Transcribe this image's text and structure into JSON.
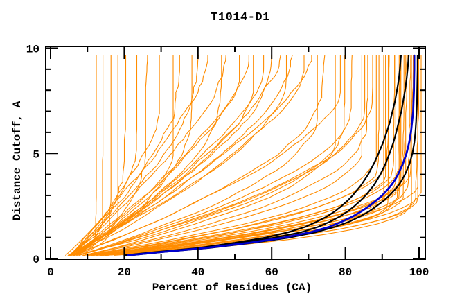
{
  "page": {
    "background": "#ffffff"
  },
  "chart_data": {
    "type": "line",
    "title": "T1014-D1",
    "xlabel": "Percent of Residues (CA)",
    "ylabel": "Distance Cutoff, A",
    "xlim": [
      -1.5,
      102
    ],
    "ylim": [
      -0.07,
      10.15
    ],
    "xticks_major": [
      0,
      20,
      40,
      60,
      80,
      100
    ],
    "xticks_minor": [
      10,
      30,
      50,
      70,
      90
    ],
    "yticks_major": [
      0,
      5,
      10
    ],
    "yticks_minor": [
      1,
      2,
      3,
      4,
      6,
      7,
      8,
      9
    ],
    "grid": false,
    "legend": null,
    "colors": {
      "orange_models": "#FF8C00",
      "black_models": "#000000",
      "blue_model": "#0000CD",
      "axis": "#000000",
      "background": "#FFFFFF"
    },
    "orange_models": [
      [
        12,
        1.4,
        2.6,
        4.0
      ],
      [
        14,
        1.9,
        2.4,
        4.6
      ],
      [
        16,
        1.5,
        2.8,
        3.4
      ],
      [
        18,
        2.3,
        2.3,
        5.2
      ],
      [
        20,
        3.6,
        2.0,
        3.8
      ],
      [
        23,
        6.0,
        1.7,
        4.9
      ],
      [
        26,
        4.4,
        2.0,
        3.5
      ],
      [
        29,
        7.0,
        1.6,
        5.5
      ],
      [
        32,
        5.2,
        1.9,
        4.2
      ],
      [
        35,
        8.0,
        1.5,
        3.9
      ],
      [
        38,
        6.4,
        1.7,
        5.0
      ],
      [
        40,
        8.2,
        1.5,
        4.3
      ],
      [
        43,
        9.4,
        1.4,
        3.6
      ],
      [
        46,
        7.6,
        1.6,
        5.3
      ],
      [
        48,
        9.6,
        1.35,
        4.7
      ],
      [
        50,
        8.6,
        1.5,
        3.8
      ],
      [
        53,
        9.6,
        1.4,
        5.1
      ],
      [
        55,
        7.9,
        1.6,
        4.0
      ],
      [
        58,
        9.3,
        1.45,
        4.6
      ],
      [
        60,
        8.8,
        1.5,
        3.5
      ],
      [
        62,
        9.6,
        1.4,
        5.4
      ],
      [
        64,
        8.3,
        1.55,
        4.1
      ],
      [
        66,
        9.5,
        1.45,
        4.8
      ],
      [
        68,
        9.0,
        1.5,
        3.7
      ],
      [
        70,
        9.6,
        1.4,
        5.0
      ],
      [
        72,
        6.6,
        1.8,
        4.4
      ],
      [
        74,
        7.6,
        1.7,
        3.9
      ],
      [
        76,
        5.6,
        1.9,
        5.2
      ],
      [
        78,
        8.1,
        1.6,
        4.5
      ],
      [
        80,
        6.1,
        1.9,
        3.6
      ],
      [
        82,
        7.1,
        1.8,
        4.9
      ],
      [
        84,
        5.1,
        2.0,
        4.2
      ],
      [
        85,
        6.9,
        1.85,
        3.8
      ],
      [
        86,
        5.9,
        1.95,
        5.0
      ],
      [
        87,
        7.3,
        1.8,
        4.3
      ],
      [
        88,
        4.9,
        2.1,
        3.5
      ],
      [
        89,
        4.5,
        2.1,
        4.6
      ],
      [
        90,
        3.0,
        2.3,
        3.9
      ],
      [
        90.5,
        4.2,
        2.1,
        5.1
      ],
      [
        91,
        3.4,
        2.2,
        4.0
      ],
      [
        91.5,
        4.6,
        2.0,
        4.4
      ],
      [
        92,
        2.8,
        2.4,
        3.6
      ],
      [
        92.5,
        3.8,
        2.2,
        4.8
      ],
      [
        93,
        4.4,
        2.1,
        4.1
      ],
      [
        93.5,
        3.2,
        2.3,
        3.7
      ],
      [
        94,
        4.0,
        2.2,
        5.0
      ],
      [
        94.5,
        2.9,
        2.4,
        4.3
      ],
      [
        95,
        3.6,
        2.2,
        3.8
      ],
      [
        95.5,
        4.3,
        2.1,
        4.7
      ],
      [
        96,
        3.1,
        2.3,
        4.2
      ],
      [
        96.5,
        3.9,
        2.2,
        3.5
      ],
      [
        97,
        2.7,
        2.5,
        4.9
      ],
      [
        97.5,
        3.5,
        2.2,
        4.0
      ],
      [
        98,
        4.1,
        2.1,
        4.5
      ],
      [
        98.5,
        3.0,
        2.4,
        3.6
      ],
      [
        99,
        3.7,
        2.2,
        5.2
      ],
      [
        99.5,
        2.9,
        2.4,
        4.1
      ],
      [
        100,
        3.3,
        2.3,
        4.4
      ]
    ],
    "black_models": [
      [
        [
          0.15,
          20
        ],
        [
          0.3,
          28
        ],
        [
          0.5,
          40
        ],
        [
          0.75,
          50
        ],
        [
          1,
          58.5
        ],
        [
          1.25,
          64.5
        ],
        [
          1.5,
          69
        ],
        [
          1.75,
          72.2
        ],
        [
          2,
          75
        ],
        [
          2.25,
          77.2
        ],
        [
          2.5,
          79
        ],
        [
          2.75,
          80.6
        ],
        [
          3,
          82
        ],
        [
          3.5,
          84.3
        ],
        [
          4,
          86.2
        ],
        [
          4.5,
          87.7
        ],
        [
          5,
          89
        ],
        [
          5.5,
          90.2
        ],
        [
          6,
          91.2
        ],
        [
          6.5,
          92.1
        ],
        [
          7,
          92.8
        ],
        [
          7.5,
          93.5
        ],
        [
          8,
          94
        ],
        [
          8.5,
          94.5
        ],
        [
          9,
          94.8
        ],
        [
          9.65,
          95.1
        ]
      ],
      [
        [
          0.15,
          20.5
        ],
        [
          0.3,
          29
        ],
        [
          0.5,
          41
        ],
        [
          0.75,
          52
        ],
        [
          1,
          61
        ],
        [
          1.25,
          68
        ],
        [
          1.5,
          72.5
        ],
        [
          1.75,
          75.8
        ],
        [
          2,
          78.5
        ],
        [
          2.25,
          80.7
        ],
        [
          2.5,
          82.5
        ],
        [
          2.75,
          84.1
        ],
        [
          3,
          85.5
        ],
        [
          3.5,
          87.8
        ],
        [
          4,
          89.5
        ],
        [
          4.5,
          90.9
        ],
        [
          5,
          92
        ],
        [
          5.5,
          93
        ],
        [
          6,
          93.8
        ],
        [
          6.5,
          94.5
        ],
        [
          7,
          95.2
        ],
        [
          7.5,
          95.7
        ],
        [
          8,
          96.2
        ],
        [
          8.5,
          96.6
        ],
        [
          9,
          96.9
        ],
        [
          9.65,
          97.2
        ]
      ],
      [
        [
          0.15,
          21.5
        ],
        [
          0.3,
          30
        ],
        [
          0.5,
          43
        ],
        [
          0.75,
          55
        ],
        [
          1,
          65
        ],
        [
          1.25,
          72
        ],
        [
          1.5,
          77
        ],
        [
          1.75,
          81
        ],
        [
          2,
          84
        ],
        [
          2.25,
          86.5
        ],
        [
          2.5,
          88.5
        ],
        [
          2.75,
          90.4
        ],
        [
          3,
          92
        ],
        [
          3.25,
          93.3
        ],
        [
          3.5,
          94.5
        ],
        [
          3.75,
          95.4
        ],
        [
          4,
          96.2
        ],
        [
          4.5,
          97.4
        ],
        [
          5,
          98.2
        ],
        [
          5.5,
          98.7
        ],
        [
          6,
          99
        ],
        [
          6.5,
          99.2
        ],
        [
          7,
          99.3
        ],
        [
          7.5,
          99.45
        ],
        [
          8,
          99.5
        ],
        [
          8.5,
          99.55
        ],
        [
          9,
          99.6
        ],
        [
          9.65,
          99.6
        ]
      ]
    ],
    "blue_model": [
      [
        0.15,
        21
      ],
      [
        0.3,
        29.5
      ],
      [
        0.5,
        42
      ],
      [
        0.75,
        54
      ],
      [
        1,
        63.5
      ],
      [
        1.25,
        70.5
      ],
      [
        1.5,
        75.5
      ],
      [
        1.75,
        79
      ],
      [
        2,
        82
      ],
      [
        2.25,
        84.4
      ],
      [
        2.5,
        86.5
      ],
      [
        2.75,
        88.3
      ],
      [
        3,
        90
      ],
      [
        3.25,
        91.3
      ],
      [
        3.5,
        92.5
      ],
      [
        3.75,
        93.5
      ],
      [
        4,
        94.3
      ],
      [
        4.5,
        95.6
      ],
      [
        5,
        96.6
      ],
      [
        5.5,
        97.3
      ],
      [
        6,
        97.8
      ],
      [
        6.5,
        98.1
      ],
      [
        7,
        98.4
      ],
      [
        7.5,
        98.5
      ],
      [
        8,
        98.6
      ],
      [
        8.5,
        98.65
      ],
      [
        9,
        98.7
      ],
      [
        9.65,
        98.7
      ]
    ]
  }
}
